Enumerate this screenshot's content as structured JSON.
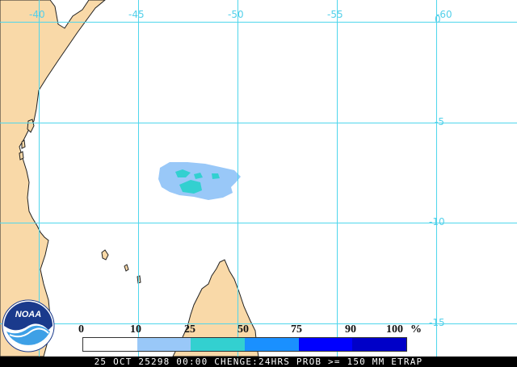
{
  "map": {
    "lon_labels": [
      "-40",
      "-45",
      "-50",
      "-55",
      "-60"
    ],
    "lat_labels": [
      "0",
      "-5",
      "-10",
      "-15"
    ],
    "grid_color": "#4fd6ec",
    "land_color": "#f9d9a8"
  },
  "logo": {
    "text": "NOAA"
  },
  "legend": {
    "labels": [
      "0",
      "10",
      "25",
      "50",
      "75",
      "90",
      "100"
    ],
    "unit": "%",
    "colors": [
      "#ffffff",
      "#99c8f8",
      "#33d0d0",
      "#1a90ff",
      "#0000ff",
      "#0000c8"
    ]
  },
  "footer": {
    "text": "25 OCT 25298 00:00 CHENGE:24HRS PROB >= 150 MM ETRAP"
  }
}
